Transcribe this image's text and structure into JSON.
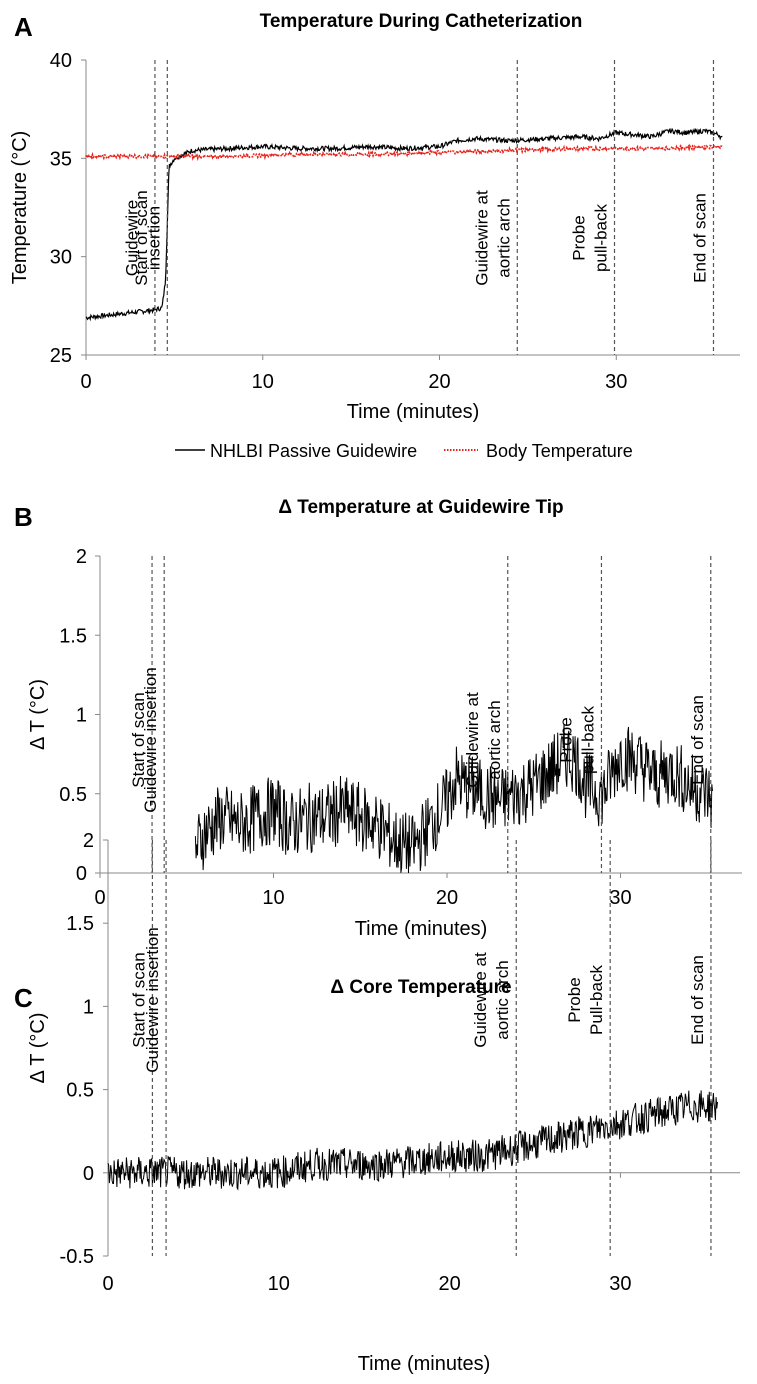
{
  "colors": {
    "guidewire": "#000000",
    "body_temperature": "#e8211b",
    "event_line": "#555555",
    "axis": "#888888"
  },
  "chart_data": [
    {
      "panel": "A",
      "type": "line",
      "title": "Temperature During Catheterization",
      "xlabel": "Time (minutes)",
      "ylabel": "Temperature (°C)",
      "xlim": [
        0,
        37
      ],
      "ylim": [
        25,
        40
      ],
      "xticks": [
        0,
        10,
        20,
        30
      ],
      "yticks": [
        25,
        30,
        35,
        40
      ],
      "grid": false,
      "legend": "bottom",
      "events": [
        {
          "x": 3.9,
          "label": "Start of scan",
          "lines": [
            "Start of scan"
          ]
        },
        {
          "x": 4.6,
          "label": "Guidewire insertion",
          "lines": [
            "Guidewire",
            "insertion"
          ]
        },
        {
          "x": 24.4,
          "label": "Guidewire at aortic arch",
          "lines": [
            "Guidewire at",
            "aortic arch"
          ]
        },
        {
          "x": 29.9,
          "label": "Probe pull-back",
          "lines": [
            "Probe",
            "pull-back"
          ]
        },
        {
          "x": 35.5,
          "label": "End of scan",
          "lines": [
            "End of scan"
          ]
        }
      ],
      "series": [
        {
          "name": "NHLBI Passive Guidewire",
          "style": "solid",
          "x": [
            0,
            1,
            2,
            3,
            3.9,
            4.3,
            4.5,
            4.7,
            5,
            6,
            8,
            10,
            12,
            14,
            16,
            18,
            20,
            21,
            22,
            24,
            26,
            28,
            29,
            30,
            31,
            32,
            33,
            34,
            35,
            35.8,
            36
          ],
          "y": [
            26.9,
            27.0,
            27.1,
            27.2,
            27.3,
            27.4,
            28.8,
            34.6,
            35.0,
            35.4,
            35.5,
            35.6,
            35.5,
            35.5,
            35.6,
            35.5,
            35.6,
            35.9,
            36.0,
            35.9,
            36.0,
            36.1,
            36.0,
            36.3,
            36.2,
            36.1,
            36.4,
            36.3,
            36.4,
            36.2,
            36.0
          ]
        },
        {
          "name": "Body Temperature",
          "style": "dotted",
          "x": [
            0,
            4,
            8,
            12,
            16,
            20,
            24,
            28,
            32,
            36
          ],
          "y": [
            35.1,
            35.1,
            35.1,
            35.2,
            35.2,
            35.3,
            35.4,
            35.5,
            35.5,
            35.6
          ]
        }
      ]
    },
    {
      "panel": "B",
      "type": "line",
      "title": "Δ Temperature at Guidewire Tip",
      "xlabel": "Time (minutes)",
      "ylabel": "Δ T (°C)",
      "xlim": [
        0,
        37
      ],
      "ylim": [
        0,
        2
      ],
      "xticks": [
        0,
        10,
        20,
        30
      ],
      "yticks": [
        0,
        0.5,
        1,
        1.5,
        2
      ],
      "grid": false,
      "events": [
        {
          "x": 3.0,
          "label": "Start of scan",
          "lines": [
            "Start of scan"
          ]
        },
        {
          "x": 3.7,
          "label": "Guidewire insertion",
          "lines": [
            "Guidewire insertion"
          ]
        },
        {
          "x": 23.5,
          "label": "Guidewire at aortic arch",
          "lines": [
            "Guidewire at",
            "aortic arch"
          ]
        },
        {
          "x": 28.9,
          "label": "Probe pull-back",
          "lines": [
            "Probe",
            "pull-back"
          ]
        },
        {
          "x": 35.2,
          "label": "End of scan",
          "lines": [
            "End of scan"
          ]
        }
      ],
      "series": [
        {
          "name": "Δ Temperature at Guidewire Tip",
          "style": "solid",
          "x": [
            5.5,
            6,
            7,
            8,
            9,
            10,
            11,
            12,
            13,
            14,
            15,
            16,
            17,
            18,
            19,
            20,
            20.5,
            21,
            22,
            23,
            24,
            25,
            26,
            27,
            27.5,
            28,
            29,
            30,
            31,
            32,
            33,
            34,
            35,
            35.3
          ],
          "y": [
            0.15,
            0.25,
            0.35,
            0.3,
            0.35,
            0.4,
            0.3,
            0.35,
            0.35,
            0.4,
            0.35,
            0.3,
            0.2,
            0.15,
            0.3,
            0.45,
            0.6,
            0.55,
            0.5,
            0.45,
            0.5,
            0.55,
            0.65,
            0.75,
            0.7,
            0.55,
            0.5,
            0.75,
            0.7,
            0.6,
            0.65,
            0.55,
            0.5,
            0.45
          ]
        }
      ]
    },
    {
      "panel": "C",
      "type": "line",
      "title": "Δ Core Temperature",
      "xlabel": "Time (minutes)",
      "ylabel": "Δ T (°C)",
      "xlim": [
        0,
        37
      ],
      "ylim": [
        -0.5,
        2
      ],
      "xticks": [
        0,
        10,
        20,
        30
      ],
      "yticks": [
        -0.5,
        0,
        0.5,
        1,
        1.5,
        2
      ],
      "grid": false,
      "events": [
        {
          "x": 2.6,
          "label": "Start of scan",
          "lines": [
            "Start of scan"
          ]
        },
        {
          "x": 3.4,
          "label": "Guidewire insertion",
          "lines": [
            "Guidewire insertion"
          ]
        },
        {
          "x": 23.9,
          "label": "Guidewire at aortic arch",
          "lines": [
            "Guidewire at",
            "aortic arch"
          ]
        },
        {
          "x": 29.4,
          "label": "Probe Pull-back",
          "lines": [
            "Probe",
            "Pull-back"
          ]
        },
        {
          "x": 35.3,
          "label": "End of scan",
          "lines": [
            "End of scan"
          ]
        }
      ],
      "series": [
        {
          "name": "Δ Core Temperature",
          "style": "solid",
          "x": [
            0,
            2,
            4,
            6,
            8,
            10,
            12,
            14,
            16,
            18,
            20,
            22,
            24,
            26,
            28,
            30,
            32,
            34,
            35.7
          ],
          "y": [
            0.0,
            0.0,
            0.0,
            0.0,
            0.0,
            0.0,
            0.05,
            0.05,
            0.05,
            0.07,
            0.1,
            0.1,
            0.15,
            0.2,
            0.25,
            0.3,
            0.35,
            0.4,
            0.4
          ]
        }
      ]
    }
  ],
  "panel_labels": [
    "A",
    "B",
    "C"
  ]
}
